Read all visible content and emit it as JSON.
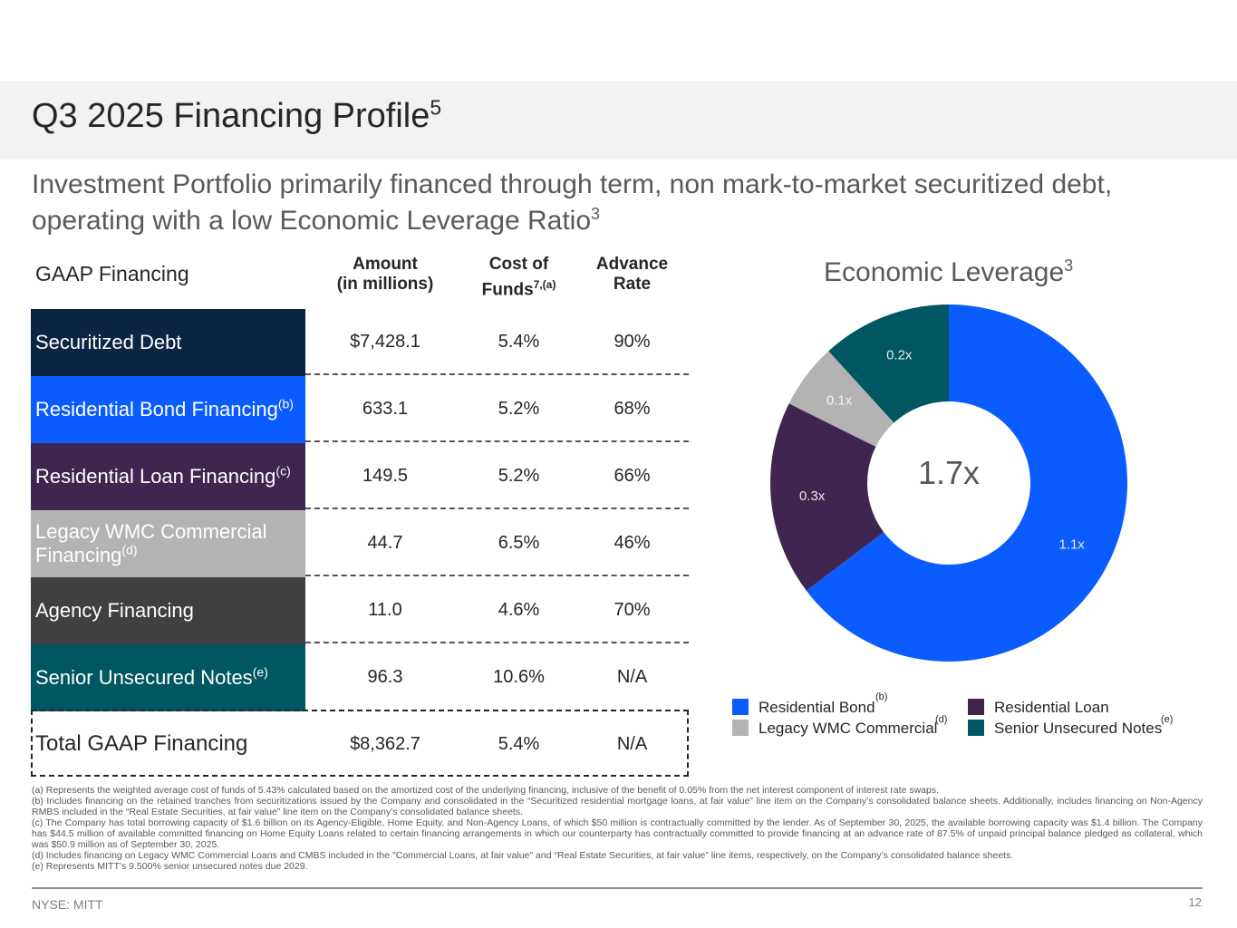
{
  "header": {
    "title": "Q3 2025 Financing Profile",
    "title_sup": "5",
    "subtitle": "Investment Portfolio primarily financed through term, non mark-to-market securitized debt, operating with a low Economic Leverage Ratio",
    "subtitle_sup": "3"
  },
  "table": {
    "section_label": "GAAP Financing",
    "columns": {
      "amount_l1": "Amount",
      "amount_l2": "(in millions)",
      "cost_l1": "Cost of",
      "cost_l2": "Funds",
      "cost_sup": "7,(a)",
      "advance_l1": "Advance",
      "advance_l2": "Rate"
    },
    "rows": [
      {
        "label": "Securitized Debt",
        "sup": "",
        "amount": "$7,428.1",
        "cost": "5.4%",
        "advance": "90%",
        "color": "#0b2545"
      },
      {
        "label": "Residential Bond Financing",
        "sup": "(b)",
        "amount": "633.1",
        "cost": "5.2%",
        "advance": "68%",
        "color": "#0a5cff"
      },
      {
        "label": "Residential Loan Financing",
        "sup": "(c)",
        "amount": "149.5",
        "cost": "5.2%",
        "advance": "66%",
        "color": "#3f2650"
      },
      {
        "label": "Legacy WMC Commercial Financing",
        "sup": "(d)",
        "amount": "44.7",
        "cost": "6.5%",
        "advance": "46%",
        "color": "#b3b3b3"
      },
      {
        "label": "Agency Financing",
        "sup": "",
        "amount": "11.0",
        "cost": "4.6%",
        "advance": "70%",
        "color": "#404040"
      },
      {
        "label": "Senior Unsecured Notes",
        "sup": "(e)",
        "amount": "96.3",
        "cost": "10.6%",
        "advance": "N/A",
        "color": "#005761"
      }
    ],
    "total": {
      "label": "Total GAAP Financing",
      "amount": "$8,362.7",
      "cost": "5.4%",
      "advance": "N/A"
    }
  },
  "chart_data": {
    "type": "pie",
    "title": "Economic Leverage",
    "title_sup": "3",
    "center_label": "1.7x",
    "slices": [
      {
        "name": "Residential Bond",
        "value": 1.1,
        "label": "1.1x",
        "color": "#0a5cff",
        "sup": "(b)"
      },
      {
        "name": "Residential Loan",
        "value": 0.3,
        "label": "0.3x",
        "color": "#3f2650",
        "sup": ""
      },
      {
        "name": "Legacy WMC Commercial",
        "value": 0.1,
        "label": "0.1x",
        "color": "#b3b3b3",
        "sup": "(d)"
      },
      {
        "name": "Senior Unsecured Notes",
        "value": 0.2,
        "label": "0.2x",
        "color": "#005761",
        "sup": "(e)"
      }
    ],
    "legend_position": "bottom"
  },
  "footnotes": [
    "(a) Represents the weighted average cost of funds of 5.43% calculated based on the amortized cost of the underlying financing, inclusive of the benefit of 0.05% from the net interest component of interest rate swaps.",
    "(b) Includes financing on the retained tranches from securitizations issued by the Company and consolidated in the “Securitized residential mortgage loans, at fair value” line item on the Company’s consolidated balance sheets. Additionally, includes financing on Non-Agency RMBS included in the “Real Estate Securities, at fair value” line item on the Company’s consolidated balance sheets.",
    "(c) The Company has total borrowing capacity of $1.6 billion on its Agency-Eligible, Home Equity, and Non-Agency Loans, of which $50 million is contractually committed by the lender. As of September 30, 2025, the available borrowing capacity was $1.4 billion. The Company has $44.5 million of available committed financing on Home Equity Loans related to certain financing arrangements in which our counterparty has contractually committed to provide financing at an advance rate of 87.5% of unpaid principal balance pledged as collateral, which was $50.9 million as of September 30, 2025.",
    "(d) Includes financing on Legacy WMC Commercial Loans and CMBS included in the \"Commercial Loans, at fair value\" and “Real Estate Securities, at fair value” line items, respectively, on the Company’s consolidated balance sheets.",
    "(e) Represents MITT’s 9.500% senior unsecured notes due 2029."
  ],
  "footer": {
    "ticker": "NYSE: MITT",
    "page": "12"
  }
}
